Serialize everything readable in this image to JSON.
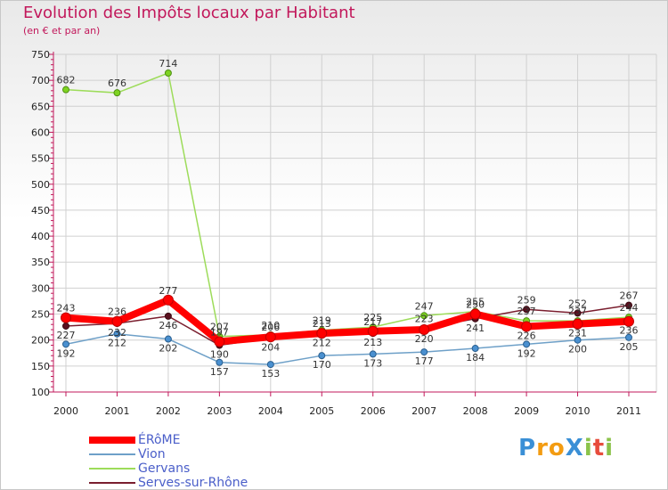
{
  "chart_data": {
    "type": "line",
    "title": "Evolution des Impôts locaux par Habitant",
    "subtitle": "(en € et par an)",
    "xlabel": "",
    "ylabel": "",
    "x": [
      "2000",
      "2001",
      "2002",
      "2003",
      "2004",
      "2005",
      "2006",
      "2007",
      "2008",
      "2009",
      "2010",
      "2011"
    ],
    "ylim": [
      100,
      750
    ],
    "yticks": [
      100,
      150,
      200,
      250,
      300,
      350,
      400,
      450,
      500,
      550,
      600,
      650,
      700,
      750
    ],
    "series": [
      {
        "name": "ÉRôME",
        "color": "#ff0000",
        "values": [
          243,
          236,
          277,
          197,
          206,
          213,
          217,
          220,
          250,
          226,
          231,
          236
        ]
      },
      {
        "name": "Vion",
        "color": "#6ea0c8",
        "values": [
          192,
          212,
          202,
          157,
          153,
          170,
          173,
          177,
          184,
          192,
          200,
          205
        ]
      },
      {
        "name": "Gervans",
        "color": "#9ddc5a",
        "values": [
          682,
          676,
          714,
          207,
          210,
          219,
          225,
          247,
          255,
          237,
          237,
          244
        ]
      },
      {
        "name": "Serves-sur-Rhône",
        "color": "#7a1e2e",
        "values": [
          227,
          232,
          246,
          190,
          204,
          212,
          213,
          223,
          241,
          259,
          252,
          267
        ]
      }
    ],
    "legend_position": "bottom-left"
  },
  "brand": {
    "text": "Proxiti",
    "letters": [
      {
        "ch": "P",
        "color": "#3a8fd6"
      },
      {
        "ch": "r",
        "color": "#f39c12"
      },
      {
        "ch": "o",
        "color": "#f39c12"
      },
      {
        "ch": "X",
        "color": "#3a8fd6"
      },
      {
        "ch": "i",
        "color": "#8bc34a"
      },
      {
        "ch": "t",
        "color": "#e74c3c"
      },
      {
        "ch": "i",
        "color": "#8bc34a"
      }
    ]
  }
}
